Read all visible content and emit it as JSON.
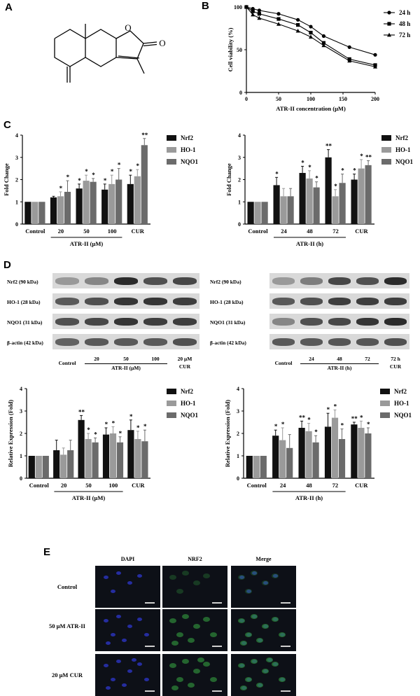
{
  "panels": {
    "A": "A",
    "B": "B",
    "C": "C",
    "D": "D",
    "E": "E"
  },
  "panelB": {
    "chart_data": {
      "type": "line",
      "xlabel": "ATR-II concentration (μM)",
      "ylabel": "Cell viability (%)",
      "xlim": [
        0,
        200
      ],
      "ylim": [
        0,
        100
      ],
      "xticks": [
        0,
        50,
        100,
        150,
        200
      ],
      "yticks": [
        0,
        50,
        100
      ],
      "x": [
        0,
        10,
        20,
        50,
        80,
        100,
        120,
        160,
        200
      ],
      "series": [
        {
          "name": "24 h",
          "marker": "circle",
          "values": [
            100,
            98,
            96,
            92,
            85,
            77,
            66,
            53,
            44
          ]
        },
        {
          "name": "48 h",
          "marker": "square",
          "values": [
            100,
            95,
            92,
            86,
            79,
            70,
            58,
            39,
            32
          ]
        },
        {
          "name": "72 h",
          "marker": "triangle",
          "values": [
            100,
            91,
            87,
            80,
            72,
            65,
            55,
            37,
            30
          ]
        }
      ]
    }
  },
  "panelC": {
    "legend": [
      "Nrf2",
      "HO-1",
      "NQO1"
    ],
    "colors": [
      "#111111",
      "#9a9a9a",
      "#6b6b6b"
    ],
    "left": {
      "chart_data": {
        "type": "bar",
        "ylabel": "Fold Change",
        "ylim": [
          0,
          4
        ],
        "yticks": [
          0,
          1,
          2,
          3,
          4
        ],
        "categories": [
          "Control",
          "20",
          "50",
          "100",
          "CUR"
        ],
        "group_label": "ATR-II (μM)",
        "series": [
          {
            "name": "Nrf2",
            "values": [
              1.0,
              1.2,
              1.6,
              1.55,
              1.8
            ],
            "err": [
              0,
              0.05,
              0.2,
              0.25,
              0.4
            ],
            "sig": [
              "",
              "",
              "*",
              "*",
              "*"
            ]
          },
          {
            "name": "HO-1",
            "values": [
              1.0,
              1.25,
              1.95,
              1.8,
              2.15
            ],
            "err": [
              0,
              0.2,
              0.25,
              0.4,
              0.3
            ],
            "sig": [
              "",
              "*",
              "*",
              "*",
              "*"
            ]
          },
          {
            "name": "NQO1",
            "values": [
              1.0,
              1.45,
              1.9,
              2.0,
              3.55
            ],
            "err": [
              0,
              0.5,
              0.15,
              0.5,
              0.3
            ],
            "sig": [
              "",
              "*",
              "*",
              "*",
              "**"
            ]
          }
        ]
      }
    },
    "right": {
      "chart_data": {
        "type": "bar",
        "ylabel": "Fold Change",
        "ylim": [
          0,
          4
        ],
        "yticks": [
          0,
          1,
          2,
          3,
          4
        ],
        "categories": [
          "Control",
          "24",
          "48",
          "72",
          "CUR"
        ],
        "group_label": "ATR-II (h)",
        "series": [
          {
            "name": "Nrf2",
            "values": [
              1.0,
              1.75,
              2.3,
              3.0,
              2.0
            ],
            "err": [
              0,
              0.35,
              0.3,
              0.35,
              0.25
            ],
            "sig": [
              "",
              "*",
              "*",
              "**",
              "*"
            ]
          },
          {
            "name": "HO-1",
            "values": [
              1.0,
              1.25,
              2.05,
              1.25,
              2.5
            ],
            "err": [
              0,
              0.35,
              0.35,
              0.3,
              0.4
            ],
            "sig": [
              "",
              "",
              "*",
              "*",
              "*"
            ]
          },
          {
            "name": "NQO1",
            "values": [
              1.0,
              1.25,
              1.65,
              1.85,
              2.65
            ],
            "err": [
              0,
              0.35,
              0.25,
              0.4,
              0.2
            ],
            "sig": [
              "",
              "",
              "*",
              "*",
              "**"
            ]
          }
        ]
      }
    }
  },
  "panelD": {
    "blots_left": {
      "rows": [
        "Nrf2 (90 kDa)",
        "HO-1 (28 kDa)",
        "NQO1 (31 kDa)",
        "β-actin (42 kDa)"
      ],
      "lanes": [
        "Control",
        "20",
        "50",
        "100",
        "20 μM"
      ],
      "lane_group": "ATR-II (μM)",
      "lane_extra": "CUR"
    },
    "blots_right": {
      "rows": [
        "Nrf2 (90 kDa)",
        "HO-1 (28 kDa)",
        "NQO1 (31 kDa)",
        "β-actin (42 kDa)"
      ],
      "lanes": [
        "Control",
        "24",
        "48",
        "72",
        "72 h"
      ],
      "lane_group": "ATR-II (h)",
      "lane_extra": "CUR"
    },
    "legend": [
      "Nrf2",
      "HO-1",
      "NQO1"
    ],
    "left": {
      "chart_data": {
        "type": "bar",
        "ylabel": "Relative Expression (Fold)",
        "ylim": [
          0,
          4
        ],
        "yticks": [
          0,
          1,
          2,
          3,
          4
        ],
        "categories": [
          "Control",
          "20",
          "50",
          "100",
          "CUR"
        ],
        "group_label": "ATR-II (μM)",
        "series": [
          {
            "name": "Nrf2",
            "values": [
              1.0,
              1.25,
              2.6,
              1.95,
              2.15
            ],
            "err": [
              0,
              0.45,
              0.2,
              0.3,
              0.45
            ],
            "sig": [
              "",
              "",
              "**",
              "*",
              "*"
            ]
          },
          {
            "name": "HO-1",
            "values": [
              1.0,
              1.05,
              1.75,
              2.0,
              1.75
            ],
            "err": [
              0,
              0.3,
              0.25,
              0.3,
              0.35
            ],
            "sig": [
              "",
              "",
              "*",
              "*",
              "*"
            ]
          },
          {
            "name": "NQO1",
            "values": [
              1.0,
              1.25,
              1.6,
              1.6,
              1.65
            ],
            "err": [
              0,
              0.45,
              0.2,
              0.25,
              0.5
            ],
            "sig": [
              "",
              "",
              "*",
              "*",
              "*"
            ]
          }
        ]
      }
    },
    "right": {
      "chart_data": {
        "type": "bar",
        "ylabel": "Relative Expression (Fold)",
        "ylim": [
          0,
          4
        ],
        "yticks": [
          0,
          1,
          2,
          3,
          4
        ],
        "categories": [
          "Control",
          "24",
          "48",
          "72",
          "CUR"
        ],
        "group_label": "ATR-II (h)",
        "series": [
          {
            "name": "Nrf2",
            "values": [
              1.0,
              1.9,
              2.25,
              2.3,
              2.4
            ],
            "err": [
              0,
              0.25,
              0.3,
              0.6,
              0.1
            ],
            "sig": [
              "",
              "*",
              "**",
              "*",
              "**"
            ]
          },
          {
            "name": "HO-1",
            "values": [
              1.0,
              1.7,
              2.1,
              2.7,
              2.25
            ],
            "err": [
              0,
              0.55,
              0.35,
              0.35,
              0.3
            ],
            "sig": [
              "",
              "*",
              "*",
              "*",
              "*"
            ]
          },
          {
            "name": "NQO1",
            "values": [
              1.0,
              1.35,
              1.6,
              1.75,
              2.0
            ],
            "err": [
              0,
              0.6,
              0.3,
              0.45,
              0.25
            ],
            "sig": [
              "",
              "",
              "*",
              "*",
              "*"
            ]
          }
        ]
      }
    }
  },
  "panelE": {
    "columns": [
      "DAPI",
      "NRF2",
      "Merge"
    ],
    "rows": [
      "Control",
      "50 μM ATR-II",
      "20 μM CUR"
    ]
  }
}
